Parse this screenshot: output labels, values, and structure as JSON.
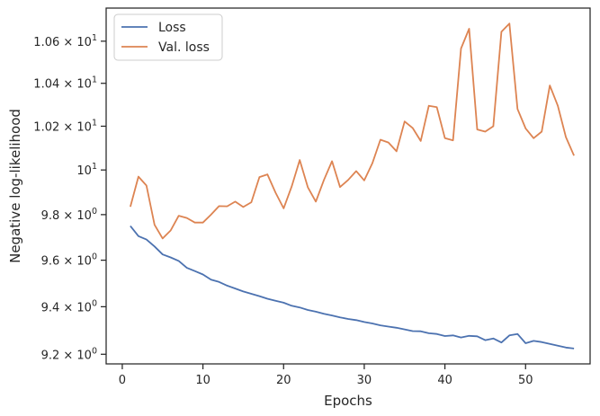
{
  "chart_data": {
    "type": "line",
    "xlabel": "Epochs",
    "ylabel": "Negative log-likelihood",
    "yscale": "log",
    "xlim": [
      -2,
      58
    ],
    "ylim": [
      9.16,
      10.76
    ],
    "grid": false,
    "legend_position": "top-left",
    "x_ticks": [
      0,
      10,
      20,
      30,
      40,
      50
    ],
    "x_tick_labels": [
      "0",
      "10",
      "20",
      "30",
      "40",
      "50"
    ],
    "y_ticks": [
      9.2,
      9.4,
      9.6,
      9.8,
      10.0,
      10.2,
      10.4,
      10.6
    ],
    "y_tick_labels": [
      {
        "mantissa": "9.2",
        "sep": " × ",
        "base": "10",
        "exp": "0"
      },
      {
        "mantissa": "9.4",
        "sep": " × ",
        "base": "10",
        "exp": "0"
      },
      {
        "mantissa": "9.6",
        "sep": " × ",
        "base": "10",
        "exp": "0"
      },
      {
        "mantissa": "9.8",
        "sep": " × ",
        "base": "10",
        "exp": "0"
      },
      {
        "mantissa": "",
        "sep": "",
        "base": "10",
        "exp": "1"
      },
      {
        "mantissa": "1.02",
        "sep": " × ",
        "base": "10",
        "exp": "1"
      },
      {
        "mantissa": "1.04",
        "sep": " × ",
        "base": "10",
        "exp": "1"
      },
      {
        "mantissa": "1.06",
        "sep": " × ",
        "base": "10",
        "exp": "1"
      }
    ],
    "x": [
      1,
      2,
      3,
      4,
      5,
      6,
      7,
      8,
      9,
      10,
      11,
      12,
      13,
      14,
      15,
      16,
      17,
      18,
      19,
      20,
      21,
      22,
      23,
      24,
      25,
      26,
      27,
      28,
      29,
      30,
      31,
      32,
      33,
      34,
      35,
      36,
      37,
      38,
      39,
      40,
      41,
      42,
      43,
      44,
      45,
      46,
      47,
      48,
      49,
      50,
      51,
      52,
      53,
      54,
      55,
      56
    ],
    "series": [
      {
        "name": "Loss",
        "color": "#4c72b0",
        "values": [
          9.75,
          9.705,
          9.69,
          9.66,
          9.625,
          9.612,
          9.597,
          9.567,
          9.553,
          9.538,
          9.516,
          9.506,
          9.49,
          9.478,
          9.465,
          9.455,
          9.445,
          9.434,
          9.425,
          9.417,
          9.404,
          9.397,
          9.386,
          9.379,
          9.37,
          9.363,
          9.355,
          9.348,
          9.343,
          9.335,
          9.329,
          9.321,
          9.316,
          9.311,
          9.304,
          9.297,
          9.296,
          9.288,
          9.285,
          9.276,
          9.279,
          9.27,
          9.277,
          9.275,
          9.259,
          9.266,
          9.249,
          9.279,
          9.285,
          9.246,
          9.256,
          9.251,
          9.243,
          9.236,
          9.228,
          9.224
        ]
      },
      {
        "name": "Val. loss",
        "color": "#dd8452",
        "values": [
          9.835,
          9.97,
          9.93,
          9.755,
          9.695,
          9.73,
          9.795,
          9.785,
          9.765,
          9.765,
          9.8,
          9.838,
          9.837,
          9.858,
          9.834,
          9.855,
          9.968,
          9.98,
          9.898,
          9.828,
          9.925,
          10.045,
          9.922,
          9.858,
          9.955,
          10.04,
          9.923,
          9.955,
          9.995,
          9.953,
          10.03,
          10.138,
          10.125,
          10.085,
          10.222,
          10.192,
          10.132,
          10.295,
          10.288,
          10.145,
          10.135,
          10.565,
          10.66,
          10.185,
          10.175,
          10.2,
          10.645,
          10.685,
          10.28,
          10.19,
          10.145,
          10.175,
          10.39,
          10.295,
          10.15,
          10.065
        ]
      }
    ]
  }
}
